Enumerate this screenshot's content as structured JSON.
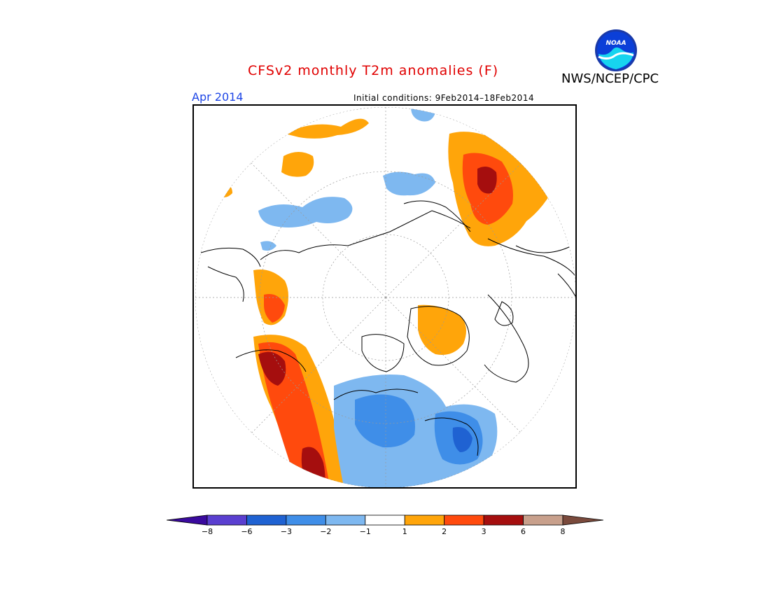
{
  "title": "CFSv2 monthly T2m anomalies (F)",
  "agency": "NWS/NCEP/CPC",
  "logo_text": "NOAA",
  "period": "Apr 2014",
  "initial_conditions": "Initial conditions: 9Feb2014–18Feb2014",
  "colors": {
    "title": "#e00000",
    "period": "#1e46e6"
  },
  "legend": {
    "bins": [
      {
        "color": "#3a0a9e"
      },
      {
        "color": "#5a3fd0"
      },
      {
        "color": "#1f62d2"
      },
      {
        "color": "#3f8ee8"
      },
      {
        "color": "#7eb8f0"
      },
      {
        "color": "#ffffff"
      },
      {
        "color": "#ffa50a"
      },
      {
        "color": "#ff4a0d"
      },
      {
        "color": "#a50e0e"
      },
      {
        "color": "#c8a08c"
      },
      {
        "color": "#7a4a3c"
      }
    ],
    "labels": [
      "−8",
      "−6",
      "−3",
      "−2",
      "−1",
      "1",
      "2",
      "3",
      "6",
      "8"
    ]
  }
}
